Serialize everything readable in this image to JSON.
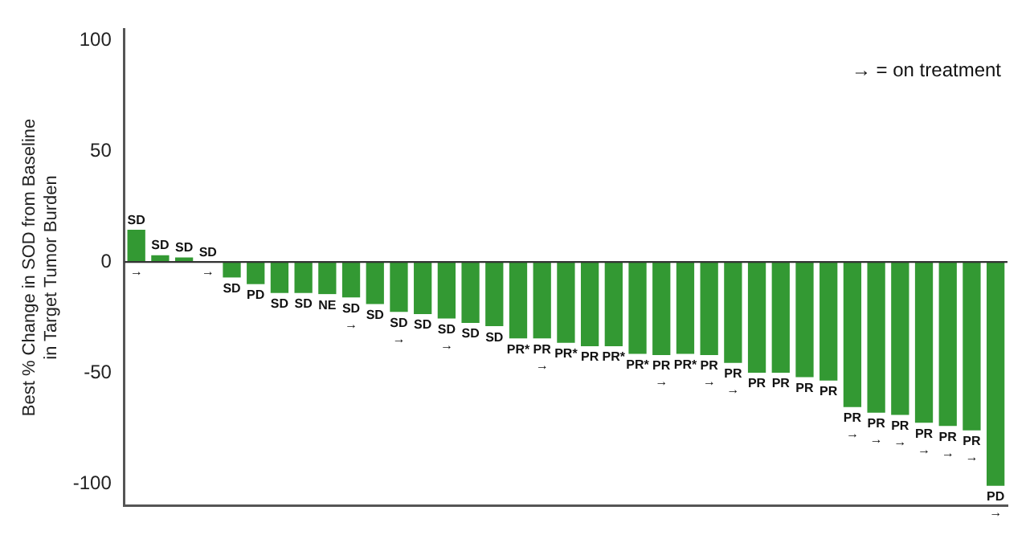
{
  "chart_data": {
    "type": "bar",
    "ylabel": "Best % Change in SOD from Baseline\nin Target Tumor Burden",
    "categories": [
      null,
      null,
      null,
      null,
      null,
      null,
      null,
      null,
      null,
      null,
      null,
      null,
      null,
      null,
      null,
      null,
      null,
      null,
      null,
      null,
      null,
      null,
      null,
      null,
      null,
      null,
      null,
      null,
      null,
      null,
      null,
      null,
      null,
      null,
      null,
      null,
      null
    ],
    "values": [
      14.5,
      3,
      2,
      0,
      -7,
      -10,
      -14,
      -14,
      -14.5,
      -16,
      -19,
      -22.5,
      -23.5,
      -25.5,
      -27.5,
      -29,
      -34.5,
      -34.5,
      -36.5,
      -38,
      -38,
      -41.5,
      -42,
      -41.5,
      -42,
      -45.5,
      -50,
      -50,
      -52,
      -53.5,
      -65.5,
      -68,
      -69,
      -72.5,
      -74,
      -76,
      -101
    ],
    "value_labels": [
      "SD\n→",
      "SD",
      "SD",
      "SD\n→",
      "SD",
      "PD",
      "SD",
      "SD",
      "NE",
      "SD\n→",
      "SD",
      "SD\n→",
      "SD",
      "SD\n→",
      "SD",
      "SD",
      "PR*",
      "PR\n→",
      "PR*",
      "PR",
      "PR*",
      "PR*",
      "PR\n→",
      "PR*",
      "PR\n→",
      "PR\n→",
      "PR",
      "PR",
      "PR",
      "PR",
      "PR\n→",
      "PR\n→",
      "PR\n→",
      "PR\n→",
      "PR\n→",
      "PR\n→",
      "PD\n→"
    ],
    "color": "#339933",
    "ylim": [
      -110,
      105
    ],
    "yticks": [
      -100,
      -50,
      0,
      50,
      100
    ],
    "ref_lines": [
      {
        "axis": "y",
        "value": 0,
        "color": "#333333"
      }
    ],
    "annotations": [
      "→ = on treatment"
    ]
  }
}
